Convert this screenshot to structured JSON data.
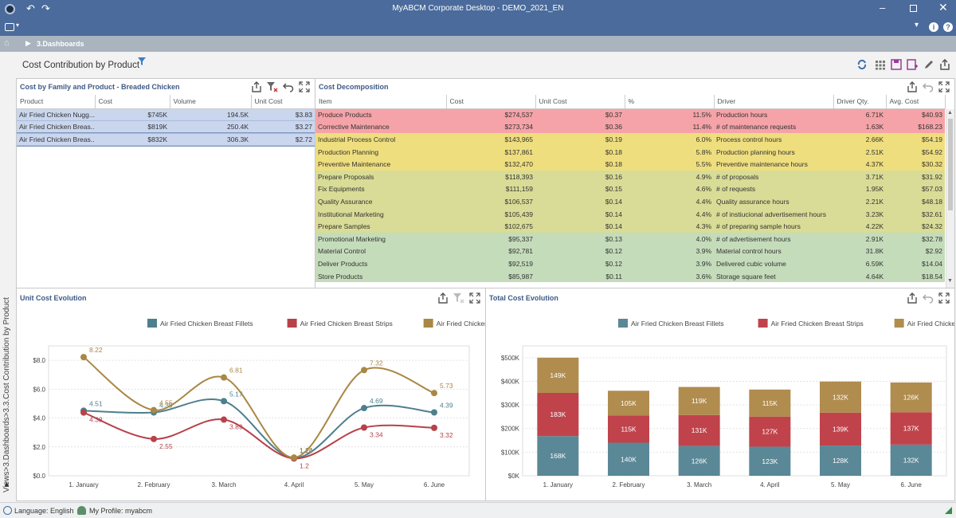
{
  "window": {
    "title": "MyABCM Corporate Desktop - DEMO_2021_EN"
  },
  "breadcrumb": {
    "label": "3.Dashboards"
  },
  "page": {
    "title": "Cost Contribution by Product"
  },
  "vertical_tab": {
    "label": "Views>3.Dashboards>3.3.Cost Contribution by Product"
  },
  "family_panel": {
    "title": "Cost by Family and Product - Breaded Chicken",
    "columns": [
      "Product",
      "Cost",
      "Volume",
      "Unit Cost"
    ],
    "rows": [
      [
        "Air Fried Chicken Nugg...",
        "$745K",
        "194.5K",
        "$3.83"
      ],
      [
        "Air Fried Chicken Breas...",
        "$819K",
        "250.4K",
        "$3.27"
      ],
      [
        "Air Fried Chicken Breas...",
        "$832K",
        "306.3K",
        "$2.72"
      ]
    ]
  },
  "decomp_panel": {
    "title": "Cost Decomposition",
    "columns": [
      "Item",
      "Cost",
      "Unit Cost",
      "%",
      "Driver",
      "Driver Qty.",
      "Avg. Cost"
    ],
    "rows": [
      [
        "Produce Products",
        "$274,537",
        "$0.37",
        "11.5%",
        "Production hours",
        "6.71K",
        "$40.93"
      ],
      [
        "Corrective Maintenance",
        "$273,734",
        "$0.36",
        "11.4%",
        "# of maintenance requests",
        "1.63K",
        "$168.23"
      ],
      [
        "Industrial Process Control",
        "$143,965",
        "$0.19",
        "6.0%",
        "Process control hours",
        "2.66K",
        "$54.19"
      ],
      [
        "Production Planning",
        "$137,861",
        "$0.18",
        "5.8%",
        "Production planning hours",
        "2.51K",
        "$54.92"
      ],
      [
        "Preventive Maintenance",
        "$132,470",
        "$0.18",
        "5.5%",
        "Preventive maintenance hours",
        "4.37K",
        "$30.32"
      ],
      [
        "Prepare Proposals",
        "$118,393",
        "$0.16",
        "4.9%",
        "# of proposals",
        "3.71K",
        "$31.92"
      ],
      [
        "Fix Equipments",
        "$111,159",
        "$0.15",
        "4.6%",
        "# of requests",
        "1.95K",
        "$57.03"
      ],
      [
        "Quality Assurance",
        "$106,537",
        "$0.14",
        "4.4%",
        "Quality assurance hours",
        "2.21K",
        "$48.18"
      ],
      [
        "Institutional Marketing",
        "$105,439",
        "$0.14",
        "4.4%",
        "# of instiucional advertisement hours",
        "3.23K",
        "$32.61"
      ],
      [
        "Prepare Samples",
        "$102,675",
        "$0.14",
        "4.3%",
        "# of preparing sample hours",
        "4.22K",
        "$24.32"
      ],
      [
        "Promotional Marketing",
        "$95,337",
        "$0.13",
        "4.0%",
        "# of advertisement hours",
        "2.91K",
        "$32.78"
      ],
      [
        "Material Control",
        "$92,781",
        "$0.12",
        "3.9%",
        "Material control hours",
        "31.8K",
        "$2.92"
      ],
      [
        "Deliver Products",
        "$92,519",
        "$0.12",
        "3.9%",
        "Delivered cubic volume",
        "6.59K",
        "$14.04"
      ],
      [
        "Store Products",
        "$85,987",
        "$0.11",
        "3.6%",
        "Storage square feet",
        "4.64K",
        "$18.54"
      ]
    ],
    "row_colors": [
      "#f5a3a8",
      "#f5a3a8",
      "#eede7e",
      "#eede7e",
      "#eede7e",
      "#d9dc96",
      "#d9dc96",
      "#d9dc96",
      "#d9dc96",
      "#d9dc96",
      "#c5dcbb",
      "#c5dcbb",
      "#c5dcbb",
      "#c5dcbb"
    ]
  },
  "unit_chart": {
    "title": "Unit Cost Evolution",
    "chart_data": {
      "type": "line",
      "categories": [
        "1. January",
        "2. February",
        "3. March",
        "4. April",
        "5. May",
        "6. June"
      ],
      "ylim": [
        0,
        9
      ],
      "yticks": [
        "$0.0",
        "$2.0",
        "$4.0",
        "$6.0",
        "$8.0"
      ],
      "ytick_values": [
        0,
        2,
        4,
        6,
        8
      ],
      "series": [
        {
          "name": "Air Fried Chicken Breast Fillets",
          "color": "#4e7f8e",
          "values": [
            4.51,
            4.39,
            5.17,
            1.24,
            4.69,
            4.39
          ],
          "labels": [
            "4.51",
            "4.39",
            "5.17",
            "1.24",
            "4.69",
            "4.39"
          ]
        },
        {
          "name": "Air Fried Chicken Breast Strips",
          "color": "#b6424a",
          "values": [
            4.38,
            2.55,
            3.89,
            1.2,
            3.34,
            3.32
          ],
          "labels": [
            "4.38",
            "2.55",
            "3.89",
            "1.2",
            "3.34",
            "3.32"
          ]
        },
        {
          "name": "Air Fried Chicken Nuggets",
          "color": "#a98744",
          "values": [
            8.22,
            4.55,
            6.81,
            1.26,
            7.32,
            5.73
          ],
          "labels": [
            "8.22",
            "4.55",
            "6.81",
            "1.26",
            "7.32",
            "5.73"
          ]
        }
      ]
    }
  },
  "total_chart": {
    "title": "Total Cost Evolution",
    "chart_data": {
      "type": "bar",
      "stacked": true,
      "categories": [
        "1. January",
        "2. February",
        "3. March",
        "4. April",
        "5. May",
        "6. June"
      ],
      "ylim": [
        0,
        550
      ],
      "yticks": [
        "$0K",
        "$100K",
        "$200K",
        "$300K",
        "$400K",
        "$500K"
      ],
      "ytick_values": [
        0,
        100,
        200,
        300,
        400,
        500
      ],
      "series": [
        {
          "name": "Air Fried Chicken Breast Fillets",
          "color": "#5a8896",
          "values": [
            168,
            140,
            126,
            123,
            128,
            132
          ],
          "labels": [
            "168K",
            "140K",
            "126K",
            "123K",
            "128K",
            "132K"
          ]
        },
        {
          "name": "Air Fried Chicken Breast Strips",
          "color": "#c0434c",
          "values": [
            183,
            115,
            131,
            127,
            139,
            137
          ],
          "labels": [
            "183K",
            "115K",
            "131K",
            "127K",
            "139K",
            "137K"
          ]
        },
        {
          "name": "Air Fried Chicken Nuggets",
          "color": "#b08c4f",
          "values": [
            149,
            105,
            119,
            115,
            132,
            126
          ],
          "labels": [
            "149K",
            "105K",
            "119K",
            "115K",
            "132K",
            "126K"
          ]
        }
      ]
    }
  },
  "statusbar": {
    "language": "Language: English",
    "profile": "My Profile: myabcm"
  }
}
